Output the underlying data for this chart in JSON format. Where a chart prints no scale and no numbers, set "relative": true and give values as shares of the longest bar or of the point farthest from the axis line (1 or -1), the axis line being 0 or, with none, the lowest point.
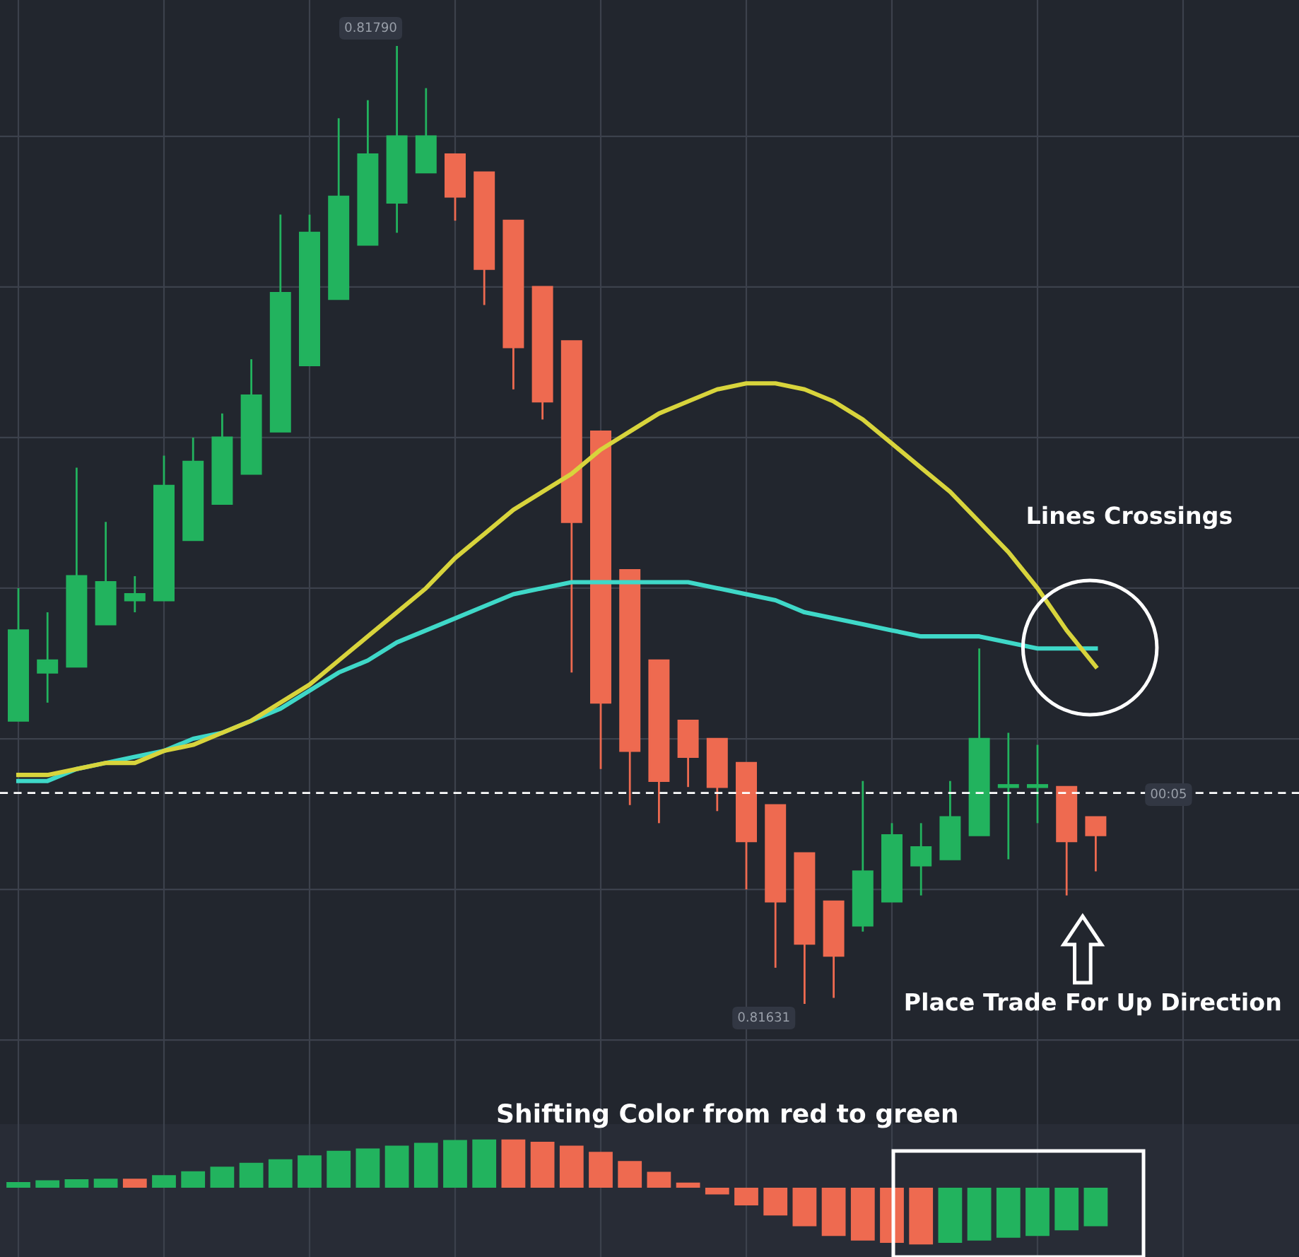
{
  "chart_data": [
    {
      "type": "candlestick",
      "categories": [
        null,
        null,
        null,
        null,
        null,
        null,
        null,
        null,
        null,
        null,
        null,
        null,
        null,
        null,
        null,
        null,
        null,
        null,
        null,
        null,
        null,
        null,
        null,
        null,
        null,
        null,
        null,
        null,
        null,
        null,
        null,
        null,
        null,
        null,
        null,
        null,
        null,
        null
      ],
      "ohlc": [
        [
          0.81678,
          0.817,
          0.81678,
          0.81693
        ],
        [
          0.81686,
          0.81696,
          0.81681,
          0.81688
        ],
        [
          0.81687,
          0.8172,
          0.81687,
          0.81702
        ],
        [
          0.81694,
          0.81711,
          0.81694,
          0.81701
        ],
        [
          0.81698,
          0.81702,
          0.81696,
          0.81699
        ],
        [
          0.81698,
          0.81722,
          0.81698,
          0.81717
        ],
        [
          0.81708,
          0.81725,
          0.81708,
          0.81721
        ],
        [
          0.81714,
          0.81729,
          0.81714,
          0.81725
        ],
        [
          0.81719,
          0.81738,
          0.81719,
          0.81732
        ],
        [
          0.81726,
          0.81762,
          0.81726,
          0.81749
        ],
        [
          0.81737,
          0.81762,
          0.81737,
          0.81759
        ],
        [
          0.81748,
          0.81778,
          0.81748,
          0.81765
        ],
        [
          0.81757,
          0.81781,
          0.81757,
          0.81772
        ],
        [
          0.81764,
          0.8179,
          0.81759,
          0.81775
        ],
        [
          0.81769,
          0.81783,
          0.81769,
          0.81775
        ],
        [
          0.81772,
          0.81772,
          0.81761,
          0.81765
        ],
        [
          0.81769,
          0.81769,
          0.81747,
          0.81753
        ],
        [
          0.81761,
          0.81761,
          0.81733,
          0.8174
        ],
        [
          0.8175,
          0.8175,
          0.81728,
          0.81731
        ],
        [
          0.81741,
          0.81741,
          0.81686,
          0.81711
        ],
        [
          0.81726,
          0.81726,
          0.8167,
          0.81681
        ],
        [
          0.81703,
          0.81703,
          0.81664,
          0.81673
        ],
        [
          0.81688,
          0.81688,
          0.81661,
          0.81668
        ],
        [
          0.81678,
          0.81678,
          0.81667,
          0.81672
        ],
        [
          0.81675,
          0.81675,
          0.81663,
          0.81667
        ],
        [
          0.81671,
          0.81671,
          0.8165,
          0.81658
        ],
        [
          0.81664,
          0.81664,
          0.81637,
          0.81648
        ],
        [
          0.81656,
          0.81656,
          0.81631,
          0.81641
        ],
        [
          0.81648,
          0.81648,
          0.81632,
          0.81639
        ],
        [
          0.81644,
          0.81668,
          0.81643,
          0.81653
        ],
        [
          0.81648,
          0.81661,
          0.81648,
          0.81659
        ],
        [
          0.81654,
          0.81661,
          0.81649,
          0.81657
        ],
        [
          0.81655,
          0.81668,
          0.81655,
          0.81662
        ],
        [
          0.81659,
          0.8169,
          0.81659,
          0.81675
        ],
        [
          0.81667,
          0.81676,
          0.81655,
          0.81667
        ],
        [
          0.81667,
          0.81674,
          0.81661,
          0.81667
        ],
        [
          0.81667,
          0.81667,
          0.81649,
          0.81658
        ],
        [
          0.81662,
          0.81662,
          0.81653,
          0.81659
        ]
      ],
      "series": [
        {
          "type": "line",
          "color": "#d8d43c",
          "values": [
            0.81669,
            0.81669,
            0.8167,
            0.81671,
            0.81671,
            0.81673,
            0.81674,
            0.81676,
            0.81678,
            0.81681,
            0.81684,
            0.81688,
            0.81692,
            0.81696,
            0.817,
            0.81705,
            0.81709,
            0.81713,
            0.81716,
            0.81719,
            0.81723,
            0.81726,
            0.81729,
            0.81731,
            0.81733,
            0.81734,
            0.81734,
            0.81733,
            0.81731,
            0.81728,
            0.81724,
            0.8172,
            0.81716,
            0.81711,
            0.81706,
            0.817,
            0.81693,
            0.81687
          ]
        },
        {
          "type": "line",
          "color": "#3fd8c8",
          "values": [
            0.81668,
            0.81668,
            0.8167,
            0.81671,
            0.81672,
            0.81673,
            0.81675,
            0.81676,
            0.81678,
            0.8168,
            0.81683,
            0.81686,
            0.81688,
            0.81691,
            0.81693,
            0.81695,
            0.81697,
            0.81699,
            0.817,
            0.81701,
            0.81701,
            0.81701,
            0.81701,
            0.81701,
            0.817,
            0.81699,
            0.81698,
            0.81696,
            0.81695,
            0.81694,
            0.81693,
            0.81692,
            0.81692,
            0.81692,
            0.81691,
            0.8169,
            0.8169,
            0.8169
          ]
        }
      ],
      "ref_lines": [
        {
          "axis": "y",
          "value": 0.81666,
          "color": "#ffffff",
          "line_style": "dashed"
        }
      ],
      "annotations": [
        "0.81790",
        "0.81631",
        "Lines Crossings",
        "Place Trade For Up Direction",
        "00:05"
      ],
      "grid": true,
      "tick_labels": false,
      "legend": false
    },
    {
      "type": "bar",
      "relative": true,
      "categories": [
        null,
        null,
        null,
        null,
        null,
        null,
        null,
        null,
        null,
        null,
        null,
        null,
        null,
        null,
        null,
        null,
        null,
        null,
        null,
        null,
        null,
        null,
        null,
        null,
        null,
        null,
        null,
        null,
        null,
        null,
        null,
        null,
        null,
        null,
        null,
        null,
        null,
        null
      ],
      "values": [
        0.1,
        0.13,
        0.15,
        0.16,
        0.16,
        0.22,
        0.29,
        0.37,
        0.44,
        0.5,
        0.57,
        0.65,
        0.69,
        0.74,
        0.79,
        0.84,
        0.85,
        0.85,
        0.81,
        0.74,
        0.63,
        0.47,
        0.28,
        0.09,
        -0.12,
        -0.31,
        -0.49,
        -0.68,
        -0.85,
        -0.93,
        -0.97,
        -1,
        -0.97,
        -0.93,
        -0.88,
        -0.85,
        -0.75,
        -0.68
      ],
      "colors": [
        "#22b35e",
        "#22b35e",
        "#22b35e",
        "#22b35e",
        "#ee6a50",
        "#22b35e",
        "#22b35e",
        "#22b35e",
        "#22b35e",
        "#22b35e",
        "#22b35e",
        "#22b35e",
        "#22b35e",
        "#22b35e",
        "#22b35e",
        "#22b35e",
        "#22b35e",
        "#ee6a50",
        "#ee6a50",
        "#ee6a50",
        "#ee6a50",
        "#ee6a50",
        "#ee6a50",
        "#ee6a50",
        "#ee6a50",
        "#ee6a50",
        "#ee6a50",
        "#ee6a50",
        "#ee6a50",
        "#ee6a50",
        "#ee6a50",
        "#ee6a50",
        "#22b35e",
        "#22b35e",
        "#22b35e",
        "#22b35e",
        "#22b35e",
        "#22b35e"
      ],
      "annotations": [
        "Shifting Color from red to green"
      ],
      "grid": "x",
      "tick_labels": false,
      "legend": false
    }
  ]
}
